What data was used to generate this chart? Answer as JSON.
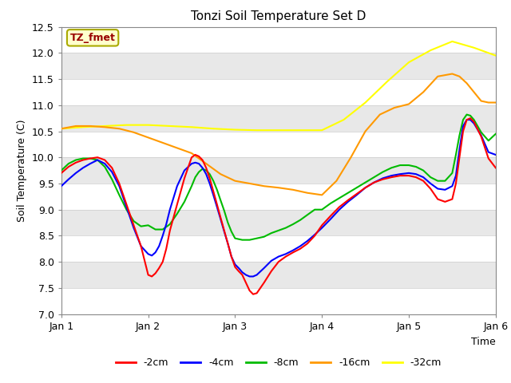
{
  "title": "Tonzi Soil Temperature Set D",
  "xlabel": "Time",
  "ylabel": "Soil Temperature (C)",
  "xlim": [
    0,
    5
  ],
  "ylim": [
    7.0,
    12.5
  ],
  "yticks": [
    7.0,
    7.5,
    8.0,
    8.5,
    9.0,
    9.5,
    10.0,
    10.5,
    11.0,
    11.5,
    12.0,
    12.5
  ],
  "xtick_labels": [
    "Jan 1",
    "Jan 2",
    "Jan 3",
    "Jan 4",
    "Jan 5",
    "Jan 6"
  ],
  "xtick_positions": [
    0,
    1,
    2,
    3,
    4,
    5
  ],
  "annotation_text": "TZ_fmet",
  "annotation_color": "#990000",
  "annotation_bg": "#ffffcc",
  "annotation_edge": "#aaaa00",
  "band_colors": [
    "#ffffff",
    "#e8e8e8"
  ],
  "colors": {
    "-2cm": "#ff0000",
    "-4cm": "#0000ff",
    "-8cm": "#00bb00",
    "-16cm": "#ff9900",
    "-32cm": "#ffff00"
  },
  "series": {
    "-2cm": {
      "x": [
        0.0,
        0.083,
        0.167,
        0.25,
        0.333,
        0.417,
        0.5,
        0.583,
        0.667,
        0.75,
        0.833,
        0.917,
        1.0,
        1.042,
        1.083,
        1.125,
        1.167,
        1.208,
        1.25,
        1.333,
        1.417,
        1.5,
        1.542,
        1.583,
        1.625,
        1.667,
        1.708,
        1.75,
        1.792,
        1.833,
        1.875,
        1.917,
        1.958,
        2.0,
        2.042,
        2.083,
        2.125,
        2.167,
        2.208,
        2.25,
        2.333,
        2.417,
        2.5,
        2.583,
        2.667,
        2.75,
        2.833,
        2.917,
        3.0,
        3.1,
        3.2,
        3.3,
        3.4,
        3.5,
        3.6,
        3.7,
        3.8,
        3.9,
        4.0,
        4.083,
        4.167,
        4.25,
        4.333,
        4.417,
        4.5,
        4.542,
        4.583,
        4.625,
        4.667,
        4.708,
        4.75,
        4.833,
        4.917,
        5.0
      ],
      "y": [
        9.7,
        9.82,
        9.9,
        9.95,
        9.98,
        10.0,
        9.95,
        9.8,
        9.5,
        9.1,
        8.7,
        8.3,
        7.75,
        7.72,
        7.78,
        7.88,
        8.0,
        8.25,
        8.6,
        9.1,
        9.6,
        10.0,
        10.05,
        10.02,
        9.95,
        9.8,
        9.6,
        9.35,
        9.1,
        8.85,
        8.6,
        8.35,
        8.1,
        7.9,
        7.82,
        7.75,
        7.6,
        7.45,
        7.38,
        7.4,
        7.6,
        7.82,
        8.0,
        8.1,
        8.18,
        8.25,
        8.35,
        8.5,
        8.7,
        8.88,
        9.05,
        9.18,
        9.3,
        9.42,
        9.52,
        9.58,
        9.62,
        9.65,
        9.65,
        9.62,
        9.55,
        9.4,
        9.2,
        9.15,
        9.2,
        9.5,
        10.0,
        10.5,
        10.72,
        10.75,
        10.68,
        10.4,
        9.98,
        9.8
      ]
    },
    "-4cm": {
      "x": [
        0.0,
        0.083,
        0.167,
        0.25,
        0.333,
        0.417,
        0.5,
        0.583,
        0.667,
        0.75,
        0.833,
        0.917,
        1.0,
        1.042,
        1.083,
        1.125,
        1.167,
        1.208,
        1.25,
        1.333,
        1.417,
        1.5,
        1.542,
        1.583,
        1.625,
        1.667,
        1.708,
        1.75,
        1.792,
        1.833,
        1.875,
        1.917,
        1.958,
        2.0,
        2.042,
        2.083,
        2.125,
        2.167,
        2.208,
        2.25,
        2.333,
        2.417,
        2.5,
        2.583,
        2.667,
        2.75,
        2.833,
        2.917,
        3.0,
        3.1,
        3.2,
        3.3,
        3.4,
        3.5,
        3.6,
        3.7,
        3.8,
        3.9,
        4.0,
        4.083,
        4.167,
        4.25,
        4.333,
        4.417,
        4.5,
        4.542,
        4.583,
        4.625,
        4.667,
        4.708,
        4.75,
        4.833,
        4.917,
        5.0
      ],
      "y": [
        9.45,
        9.58,
        9.7,
        9.8,
        9.88,
        9.95,
        9.88,
        9.72,
        9.45,
        9.05,
        8.65,
        8.3,
        8.15,
        8.12,
        8.18,
        8.3,
        8.5,
        8.72,
        9.0,
        9.45,
        9.75,
        9.88,
        9.9,
        9.88,
        9.8,
        9.68,
        9.5,
        9.28,
        9.05,
        8.82,
        8.58,
        8.35,
        8.1,
        7.95,
        7.88,
        7.8,
        7.75,
        7.72,
        7.72,
        7.75,
        7.88,
        8.02,
        8.1,
        8.15,
        8.22,
        8.3,
        8.4,
        8.52,
        8.65,
        8.82,
        9.0,
        9.15,
        9.28,
        9.42,
        9.52,
        9.6,
        9.65,
        9.68,
        9.7,
        9.68,
        9.62,
        9.5,
        9.4,
        9.38,
        9.45,
        9.65,
        10.15,
        10.6,
        10.72,
        10.72,
        10.65,
        10.42,
        10.1,
        10.05
      ]
    },
    "-8cm": {
      "x": [
        0.0,
        0.083,
        0.167,
        0.25,
        0.333,
        0.417,
        0.5,
        0.583,
        0.667,
        0.75,
        0.833,
        0.917,
        1.0,
        1.083,
        1.167,
        1.25,
        1.333,
        1.417,
        1.5,
        1.542,
        1.583,
        1.625,
        1.667,
        1.708,
        1.75,
        1.792,
        1.833,
        1.875,
        1.917,
        1.958,
        2.0,
        2.083,
        2.167,
        2.25,
        2.333,
        2.417,
        2.5,
        2.583,
        2.667,
        2.75,
        2.833,
        2.917,
        3.0,
        3.1,
        3.2,
        3.3,
        3.4,
        3.5,
        3.6,
        3.7,
        3.8,
        3.9,
        4.0,
        4.083,
        4.167,
        4.25,
        4.333,
        4.417,
        4.5,
        4.542,
        4.583,
        4.625,
        4.667,
        4.708,
        4.75,
        4.833,
        4.917,
        5.0
      ],
      "y": [
        9.75,
        9.88,
        9.95,
        9.98,
        9.98,
        9.95,
        9.82,
        9.58,
        9.28,
        9.0,
        8.78,
        8.68,
        8.7,
        8.62,
        8.62,
        8.72,
        8.92,
        9.15,
        9.45,
        9.62,
        9.72,
        9.78,
        9.75,
        9.68,
        9.55,
        9.38,
        9.18,
        8.98,
        8.75,
        8.58,
        8.45,
        8.42,
        8.42,
        8.45,
        8.48,
        8.55,
        8.6,
        8.65,
        8.72,
        8.8,
        8.9,
        9.0,
        9.0,
        9.12,
        9.22,
        9.32,
        9.42,
        9.52,
        9.62,
        9.72,
        9.8,
        9.85,
        9.85,
        9.82,
        9.75,
        9.62,
        9.55,
        9.55,
        9.7,
        10.05,
        10.42,
        10.72,
        10.82,
        10.8,
        10.72,
        10.48,
        10.32,
        10.45
      ]
    },
    "-16cm": {
      "x": [
        0.0,
        0.167,
        0.333,
        0.5,
        0.667,
        0.833,
        1.0,
        1.167,
        1.333,
        1.5,
        1.667,
        1.833,
        2.0,
        2.167,
        2.333,
        2.5,
        2.667,
        2.833,
        3.0,
        3.167,
        3.333,
        3.5,
        3.667,
        3.833,
        4.0,
        4.167,
        4.333,
        4.5,
        4.583,
        4.667,
        4.75,
        4.833,
        4.917,
        5.0
      ],
      "y": [
        10.55,
        10.6,
        10.6,
        10.58,
        10.55,
        10.48,
        10.38,
        10.28,
        10.18,
        10.08,
        9.88,
        9.68,
        9.55,
        9.5,
        9.45,
        9.42,
        9.38,
        9.32,
        9.28,
        9.55,
        10.0,
        10.5,
        10.82,
        10.95,
        11.02,
        11.25,
        11.55,
        11.6,
        11.55,
        11.42,
        11.25,
        11.08,
        11.05,
        11.05
      ]
    },
    "-32cm": {
      "x": [
        0.0,
        0.25,
        0.5,
        0.75,
        1.0,
        1.25,
        1.5,
        1.75,
        2.0,
        2.25,
        2.5,
        2.75,
        3.0,
        3.25,
        3.5,
        3.75,
        4.0,
        4.25,
        4.5,
        4.75,
        5.0
      ],
      "y": [
        10.55,
        10.58,
        10.6,
        10.62,
        10.62,
        10.6,
        10.58,
        10.55,
        10.53,
        10.52,
        10.52,
        10.52,
        10.52,
        10.72,
        11.05,
        11.45,
        11.82,
        12.05,
        12.22,
        12.1,
        11.95
      ]
    }
  }
}
